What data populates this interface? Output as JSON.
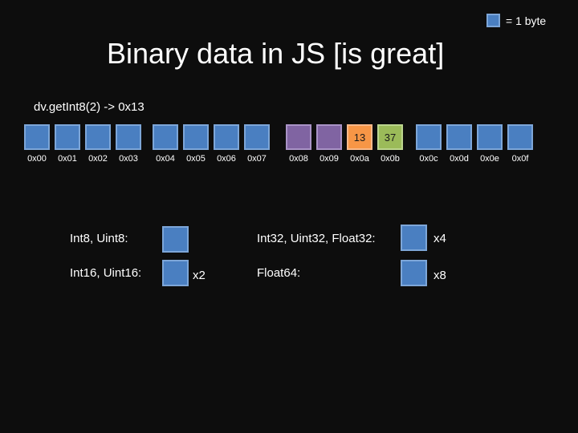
{
  "legend": {
    "text": "= 1 byte"
  },
  "title": "Binary data in JS [is great]",
  "code_line": "dv.getInt8(2) -> 0x13",
  "bytes": [
    {
      "addr": "0x00",
      "value": "",
      "color": "#4a7fc1"
    },
    {
      "addr": "0x01",
      "value": "",
      "color": "#4a7fc1"
    },
    {
      "addr": "0x02",
      "value": "",
      "color": "#4a7fc1"
    },
    {
      "addr": "0x03",
      "value": "",
      "color": "#4a7fc1"
    },
    {
      "addr": "0x04",
      "value": "",
      "color": "#4a7fc1"
    },
    {
      "addr": "0x05",
      "value": "",
      "color": "#4a7fc1"
    },
    {
      "addr": "0x06",
      "value": "",
      "color": "#4a7fc1"
    },
    {
      "addr": "0x07",
      "value": "",
      "color": "#4a7fc1"
    },
    {
      "addr": "0x08",
      "value": "",
      "color": "#8064a2"
    },
    {
      "addr": "0x09",
      "value": "",
      "color": "#8064a2"
    },
    {
      "addr": "0x0a",
      "value": "13",
      "color": "#f79646"
    },
    {
      "addr": "0x0b",
      "value": "37",
      "color": "#9bbb59"
    },
    {
      "addr": "0x0c",
      "value": "",
      "color": "#4a7fc1"
    },
    {
      "addr": "0x0d",
      "value": "",
      "color": "#4a7fc1"
    },
    {
      "addr": "0x0e",
      "value": "",
      "color": "#4a7fc1"
    },
    {
      "addr": "0x0f",
      "value": "",
      "color": "#4a7fc1"
    }
  ],
  "types": {
    "int8": {
      "label": "Int8, Uint8:",
      "multiplier": ""
    },
    "int16": {
      "label": "Int16, Uint16:",
      "multiplier": "x2"
    },
    "int32": {
      "label": "Int32, Uint32, Float32:",
      "multiplier": "x4"
    },
    "float64": {
      "label": "Float64:",
      "multiplier": "x8"
    }
  },
  "colors": {
    "background": "#0d0d0d",
    "byte_blue": "#4a7fc1",
    "byte_purple": "#8064a2",
    "byte_orange": "#f79646",
    "byte_green": "#9bbb59"
  }
}
